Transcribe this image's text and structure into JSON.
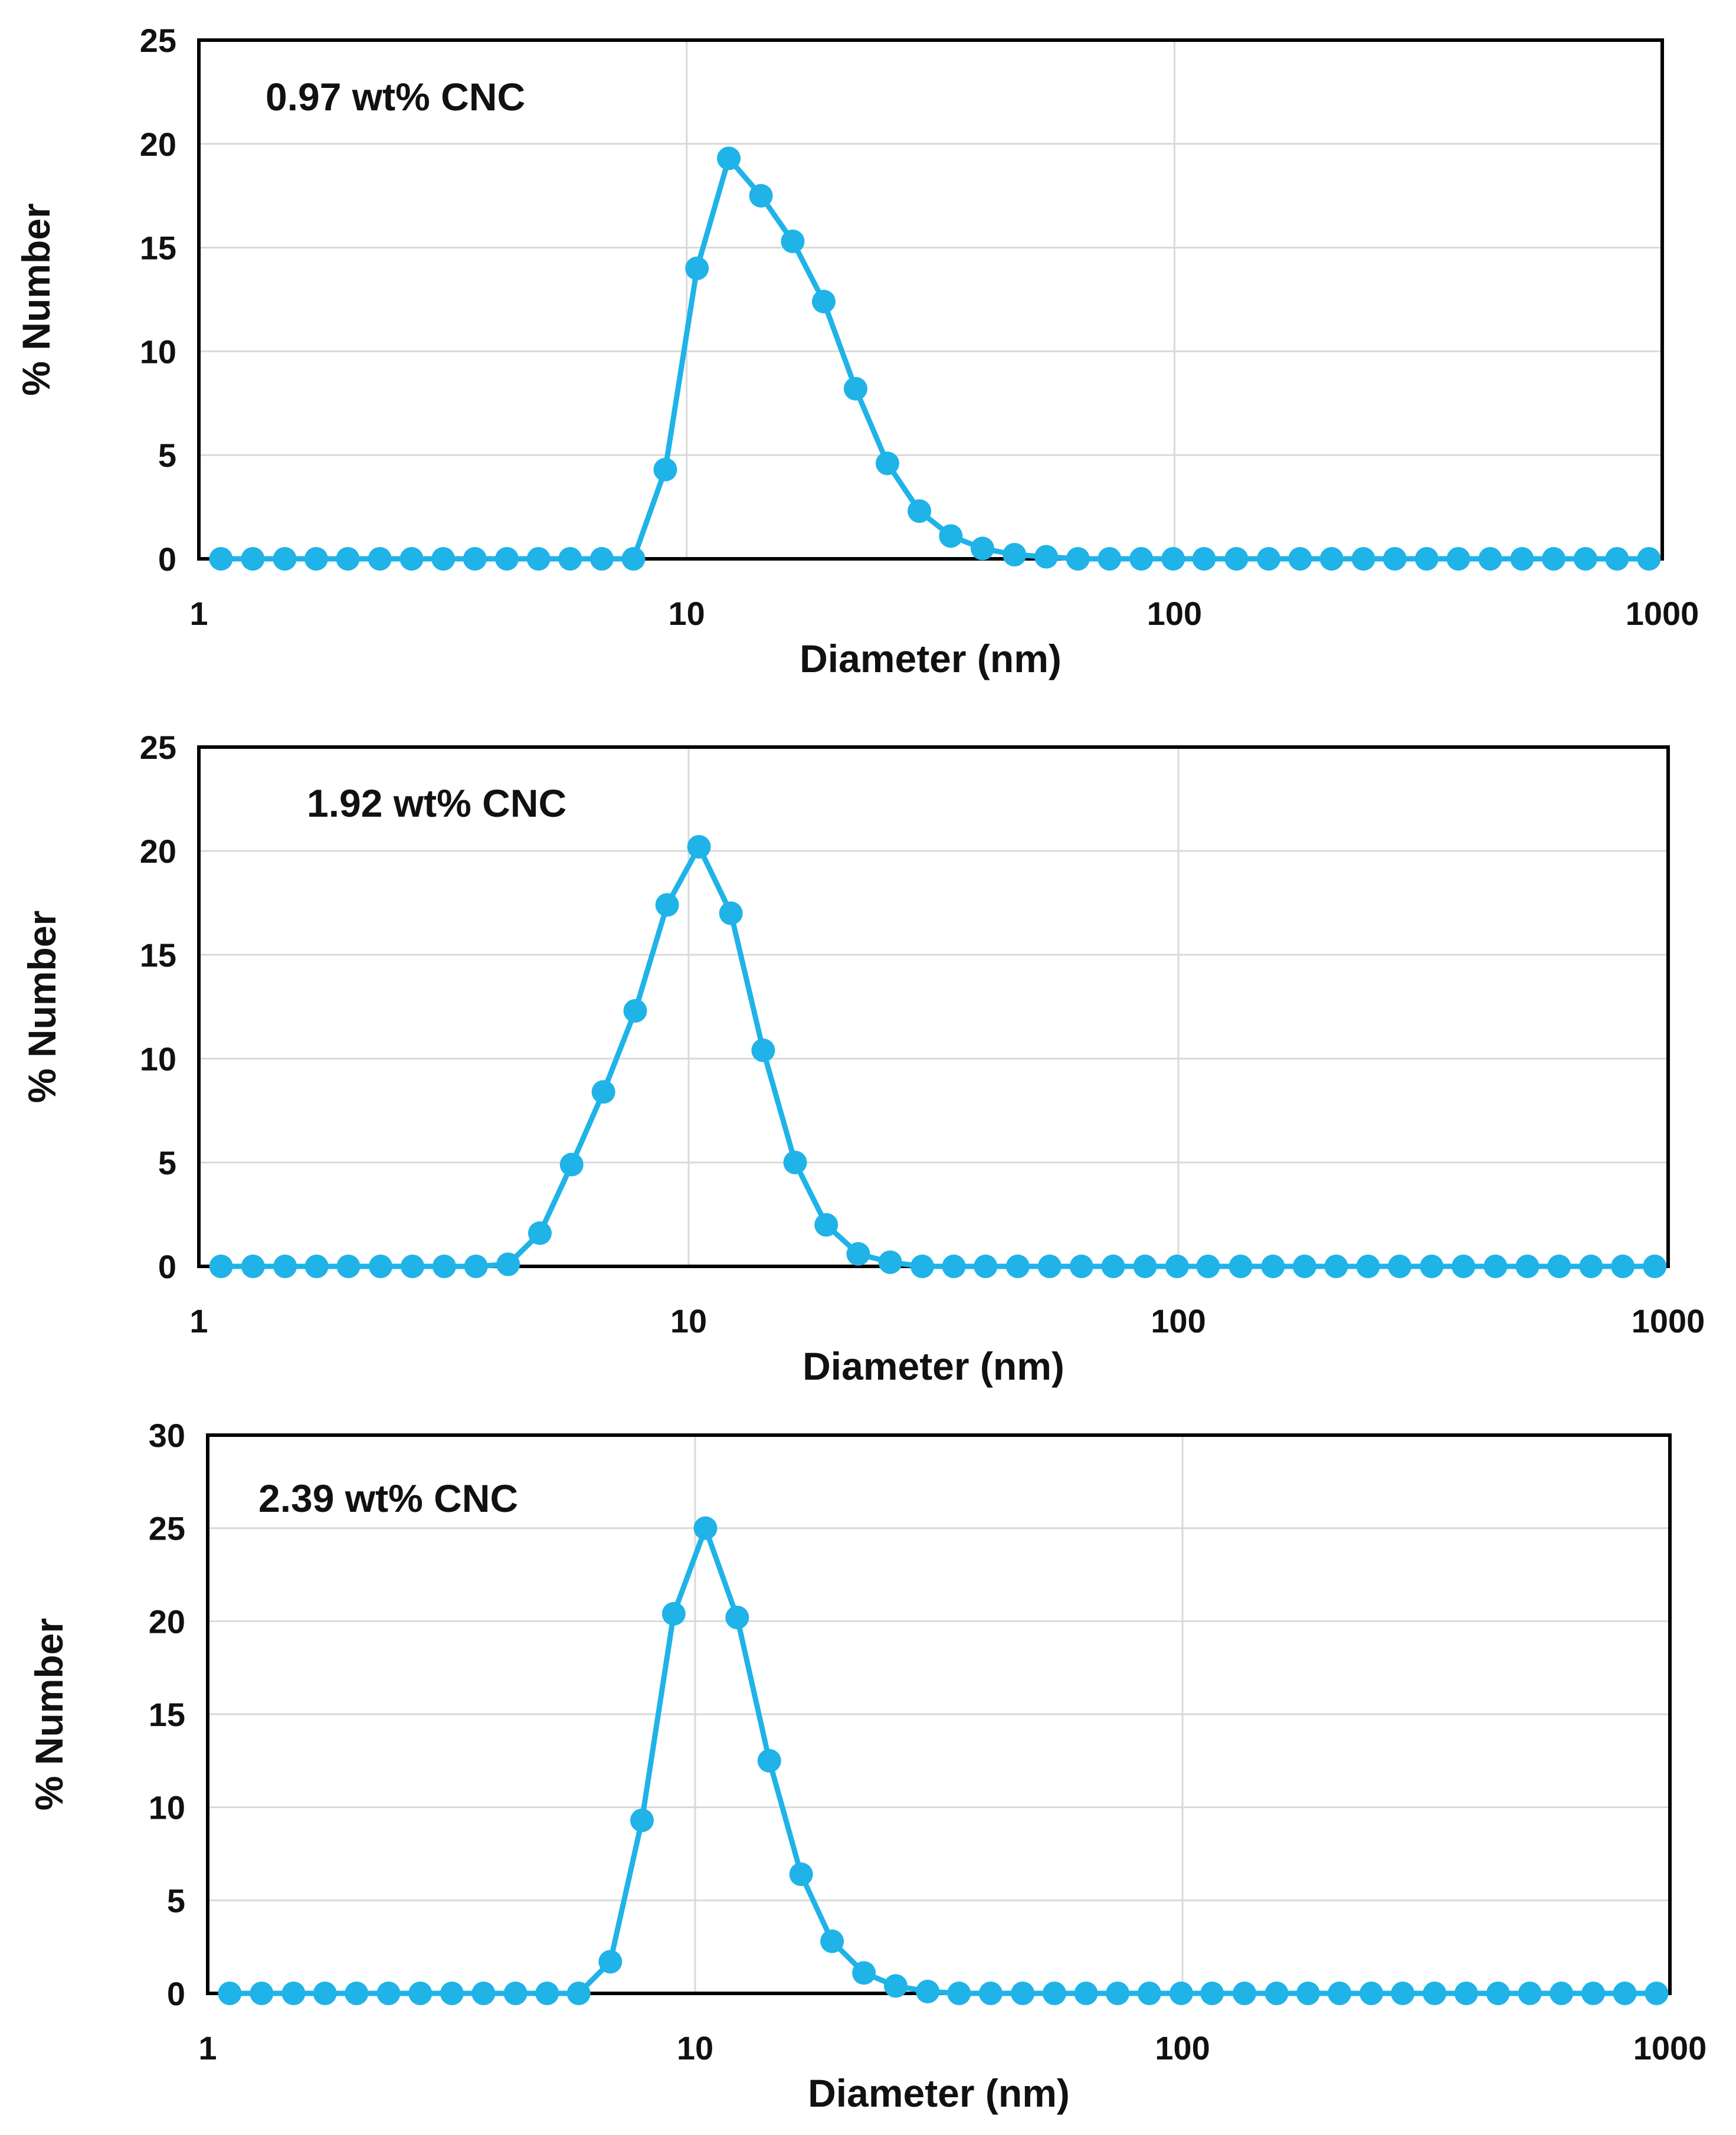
{
  "chart_data": [
    {
      "type": "line",
      "annotation": "0.97 wt% CNC",
      "xlabel": "Diameter (nm)",
      "ylabel": "% Number",
      "xscale": "log",
      "xlim": [
        1,
        1000
      ],
      "ylim": [
        0,
        25
      ],
      "grid": true,
      "color": "#1fb3e8",
      "xticks": [
        "1",
        "10",
        "100",
        "1000"
      ],
      "yticks": [
        "0",
        "5",
        "10",
        "15",
        "20",
        "25"
      ],
      "x": [
        1.11,
        1.29,
        1.5,
        1.74,
        2.02,
        2.35,
        2.73,
        3.17,
        3.68,
        4.28,
        4.97,
        5.77,
        6.7,
        7.78,
        9.04,
        10.5,
        12.2,
        14.2,
        16.5,
        19.1,
        22.2,
        25.8,
        30.0,
        34.8,
        40.4,
        47.0,
        54.6,
        63.4,
        73.6,
        85.5,
        99.4,
        115,
        134,
        156,
        181,
        210,
        244,
        283,
        329,
        382,
        444,
        516,
        599,
        696,
        808,
        939
      ],
      "y": [
        0,
        0,
        0,
        0,
        0,
        0,
        0,
        0,
        0,
        0,
        0,
        0,
        0,
        0,
        4.3,
        14.0,
        19.3,
        17.5,
        15.3,
        12.4,
        8.2,
        4.6,
        2.3,
        1.1,
        0.5,
        0.2,
        0.1,
        0,
        0,
        0,
        0,
        0,
        0,
        0,
        0,
        0,
        0,
        0,
        0,
        0,
        0,
        0,
        0,
        0,
        0,
        0
      ]
    },
    {
      "type": "line",
      "annotation": "1.92 wt% CNC",
      "xlabel": "Diameter (nm)",
      "ylabel": "% Number",
      "xscale": "log",
      "xlim": [
        1,
        1000
      ],
      "ylim": [
        0,
        25
      ],
      "grid": true,
      "color": "#1fb3e8",
      "xticks": [
        "1",
        "10",
        "100",
        "1000"
      ],
      "yticks": [
        "0",
        "5",
        "10",
        "15",
        "20",
        "25"
      ],
      "x": [
        1.11,
        1.29,
        1.5,
        1.74,
        2.02,
        2.35,
        2.73,
        3.17,
        3.68,
        4.28,
        4.97,
        5.77,
        6.7,
        7.78,
        9.04,
        10.5,
        12.2,
        14.2,
        16.5,
        19.1,
        22.2,
        25.8,
        30.0,
        34.8,
        40.4,
        47.0,
        54.6,
        63.4,
        73.6,
        85.5,
        99.4,
        115,
        134,
        156,
        181,
        210,
        244,
        283,
        329,
        382,
        444,
        516,
        599,
        696,
        808,
        939
      ],
      "y": [
        0,
        0,
        0,
        0,
        0,
        0,
        0,
        0,
        0,
        0.1,
        1.6,
        4.9,
        8.4,
        12.3,
        17.4,
        20.2,
        17.0,
        10.4,
        5.0,
        2.0,
        0.6,
        0.2,
        0,
        0,
        0,
        0,
        0,
        0,
        0,
        0,
        0,
        0,
        0,
        0,
        0,
        0,
        0,
        0,
        0,
        0,
        0,
        0,
        0,
        0,
        0,
        0
      ]
    },
    {
      "type": "line",
      "annotation": "2.39 wt% CNC",
      "xlabel": "Diameter (nm)",
      "ylabel": "% Number",
      "xscale": "log",
      "xlim": [
        1,
        1000
      ],
      "ylim": [
        0,
        30
      ],
      "grid": true,
      "color": "#1fb3e8",
      "xticks": [
        "1",
        "10",
        "100",
        "1000"
      ],
      "yticks": [
        "0",
        "5",
        "10",
        "15",
        "20",
        "25",
        "30"
      ],
      "x": [
        1.11,
        1.29,
        1.5,
        1.74,
        2.02,
        2.35,
        2.73,
        3.17,
        3.68,
        4.28,
        4.97,
        5.77,
        6.7,
        7.78,
        9.04,
        10.5,
        12.2,
        14.2,
        16.5,
        19.1,
        22.2,
        25.8,
        30.0,
        34.8,
        40.4,
        47.0,
        54.6,
        63.4,
        73.6,
        85.5,
        99.4,
        115,
        134,
        156,
        181,
        210,
        244,
        283,
        329,
        382,
        444,
        516,
        599,
        696,
        808,
        939
      ],
      "y": [
        0,
        0,
        0,
        0,
        0,
        0,
        0,
        0,
        0,
        0,
        0,
        0,
        1.7,
        9.3,
        20.4,
        25.0,
        20.2,
        12.5,
        6.4,
        2.8,
        1.1,
        0.4,
        0.1,
        0,
        0,
        0,
        0,
        0,
        0,
        0,
        0,
        0,
        0,
        0,
        0,
        0,
        0,
        0,
        0,
        0,
        0,
        0,
        0,
        0,
        0,
        0
      ]
    }
  ]
}
